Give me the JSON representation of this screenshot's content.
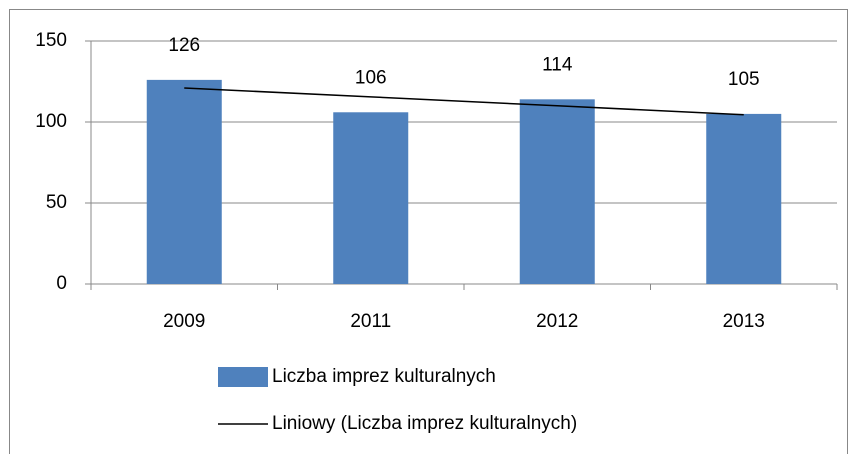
{
  "chart_data": {
    "type": "bar",
    "categories": [
      "2009",
      "2011",
      "2012",
      "2013"
    ],
    "series": [
      {
        "name": "Liczba imprez kulturalnych",
        "color": "#4f81bd",
        "values": [
          126,
          106,
          114,
          105
        ]
      },
      {
        "name": "Liniowy (Liczba imprez kulturalnych)",
        "color": "#000000",
        "type": "line",
        "values": [
          121,
          115.5,
          110,
          104.5
        ]
      }
    ],
    "data_labels_series": 0,
    "ylim": [
      0,
      150
    ],
    "yticks": [
      0,
      50,
      100,
      150
    ],
    "grid": true,
    "legend": "bottom"
  }
}
